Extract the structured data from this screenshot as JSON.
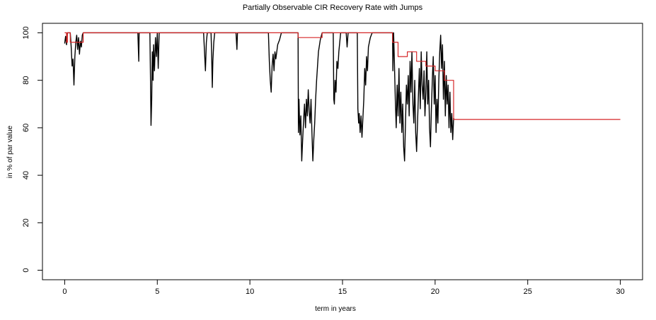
{
  "chart_data": {
    "type": "line",
    "title": "Partially Observable CIR Recovery Rate with Jumps",
    "xlabel": "term in years",
    "ylabel": "in % of par value",
    "xlim": [
      -1.2,
      31.2
    ],
    "ylim": [
      -4,
      104
    ],
    "x_ticks": [
      0,
      5,
      10,
      15,
      20,
      25,
      30
    ],
    "y_ticks": [
      0,
      20,
      40,
      60,
      80,
      100
    ],
    "grid": false,
    "legend": "none",
    "series": [
      {
        "color": "#000000",
        "points": [
          [
            0.0,
            95.5
          ],
          [
            0.05,
            98.5
          ],
          [
            0.1,
            95.0
          ],
          [
            0.15,
            100.0
          ],
          [
            0.3,
            100.0
          ],
          [
            0.35,
            94.0
          ],
          [
            0.4,
            86.0
          ],
          [
            0.45,
            89.0
          ],
          [
            0.5,
            78.0
          ],
          [
            0.55,
            90.0
          ],
          [
            0.6,
            96.0
          ],
          [
            0.65,
            99.0
          ],
          [
            0.7,
            93.0
          ],
          [
            0.75,
            98.0
          ],
          [
            0.8,
            91.0
          ],
          [
            0.85,
            96.5
          ],
          [
            0.9,
            94.0
          ],
          [
            0.95,
            99.0
          ],
          [
            1.0,
            100.0
          ],
          [
            3.95,
            100.0
          ],
          [
            4.0,
            88.0
          ],
          [
            4.02,
            100.0
          ],
          [
            4.6,
            100.0
          ],
          [
            4.63,
            82.0
          ],
          [
            4.66,
            61.0
          ],
          [
            4.7,
            72.0
          ],
          [
            4.73,
            92.0
          ],
          [
            4.77,
            80.0
          ],
          [
            4.8,
            95.0
          ],
          [
            4.85,
            84.0
          ],
          [
            4.9,
            98.0
          ],
          [
            4.95,
            90.0
          ],
          [
            5.0,
            100.0
          ],
          [
            5.05,
            85.0
          ],
          [
            5.1,
            100.0
          ],
          [
            7.5,
            100.0
          ],
          [
            7.55,
            92.0
          ],
          [
            7.6,
            84.0
          ],
          [
            7.65,
            96.0
          ],
          [
            7.7,
            100.0
          ],
          [
            7.9,
            100.0
          ],
          [
            7.93,
            92.0
          ],
          [
            7.97,
            77.0
          ],
          [
            8.0,
            88.0
          ],
          [
            8.05,
            96.0
          ],
          [
            8.1,
            100.0
          ],
          [
            9.25,
            100.0
          ],
          [
            9.3,
            93.0
          ],
          [
            9.33,
            100.0
          ],
          [
            11.0,
            100.0
          ],
          [
            11.05,
            88.0
          ],
          [
            11.1,
            80.0
          ],
          [
            11.15,
            75.0
          ],
          [
            11.2,
            86.0
          ],
          [
            11.25,
            91.0
          ],
          [
            11.3,
            84.0
          ],
          [
            11.35,
            92.0
          ],
          [
            11.4,
            89.0
          ],
          [
            11.5,
            95.0
          ],
          [
            11.6,
            97.0
          ],
          [
            11.7,
            100.0
          ],
          [
            12.6,
            100.0
          ],
          [
            12.62,
            58.0
          ],
          [
            12.65,
            72.0
          ],
          [
            12.7,
            57.0
          ],
          [
            12.75,
            65.0
          ],
          [
            12.8,
            46.0
          ],
          [
            12.85,
            55.0
          ],
          [
            12.9,
            63.0
          ],
          [
            12.95,
            70.0
          ],
          [
            13.0,
            60.0
          ],
          [
            13.05,
            72.0
          ],
          [
            13.1,
            65.0
          ],
          [
            13.15,
            76.0
          ],
          [
            13.2,
            67.0
          ],
          [
            13.25,
            62.0
          ],
          [
            13.3,
            72.0
          ],
          [
            13.35,
            58.0
          ],
          [
            13.4,
            46.0
          ],
          [
            13.45,
            55.0
          ],
          [
            13.5,
            62.0
          ],
          [
            13.55,
            72.0
          ],
          [
            13.6,
            80.0
          ],
          [
            13.65,
            86.0
          ],
          [
            13.7,
            92.0
          ],
          [
            13.8,
            97.0
          ],
          [
            13.9,
            100.0
          ],
          [
            14.5,
            100.0
          ],
          [
            14.53,
            72.0
          ],
          [
            14.56,
            70.0
          ],
          [
            14.6,
            80.0
          ],
          [
            14.65,
            75.0
          ],
          [
            14.7,
            88.0
          ],
          [
            14.75,
            85.0
          ],
          [
            14.8,
            92.0
          ],
          [
            14.85,
            96.0
          ],
          [
            14.9,
            100.0
          ],
          [
            15.2,
            100.0
          ],
          [
            15.25,
            94.0
          ],
          [
            15.3,
            100.0
          ],
          [
            15.8,
            100.0
          ],
          [
            15.83,
            68.0
          ],
          [
            15.87,
            62.0
          ],
          [
            15.9,
            66.0
          ],
          [
            15.95,
            58.0
          ],
          [
            16.0,
            65.0
          ],
          [
            16.05,
            56.0
          ],
          [
            16.1,
            64.0
          ],
          [
            16.15,
            72.0
          ],
          [
            16.2,
            85.0
          ],
          [
            16.25,
            78.0
          ],
          [
            16.3,
            90.0
          ],
          [
            16.35,
            84.0
          ],
          [
            16.4,
            94.0
          ],
          [
            16.5,
            98.0
          ],
          [
            16.6,
            100.0
          ],
          [
            17.7,
            100.0
          ],
          [
            17.72,
            84.0
          ],
          [
            17.76,
            100.0
          ],
          [
            17.8,
            88.0
          ],
          [
            17.85,
            72.0
          ],
          [
            17.9,
            60.0
          ],
          [
            17.95,
            78.0
          ],
          [
            18.0,
            65.0
          ],
          [
            18.05,
            85.0
          ],
          [
            18.1,
            62.0
          ],
          [
            18.15,
            75.0
          ],
          [
            18.2,
            58.0
          ],
          [
            18.25,
            70.0
          ],
          [
            18.3,
            52.0
          ],
          [
            18.35,
            46.0
          ],
          [
            18.4,
            62.0
          ],
          [
            18.45,
            78.0
          ],
          [
            18.5,
            70.0
          ],
          [
            18.55,
            82.0
          ],
          [
            18.6,
            65.0
          ],
          [
            18.65,
            88.0
          ],
          [
            18.7,
            75.0
          ],
          [
            18.75,
            92.0
          ],
          [
            18.8,
            70.0
          ],
          [
            18.85,
            62.0
          ],
          [
            18.9,
            80.0
          ],
          [
            18.95,
            58.0
          ],
          [
            19.0,
            50.0
          ],
          [
            19.05,
            62.0
          ],
          [
            19.1,
            74.0
          ],
          [
            19.15,
            85.0
          ],
          [
            19.2,
            68.0
          ],
          [
            19.25,
            92.0
          ],
          [
            19.3,
            78.0
          ],
          [
            19.35,
            72.0
          ],
          [
            19.4,
            84.0
          ],
          [
            19.45,
            65.0
          ],
          [
            19.5,
            75.0
          ],
          [
            19.55,
            92.0
          ],
          [
            19.6,
            70.0
          ],
          [
            19.65,
            80.0
          ],
          [
            19.7,
            60.0
          ],
          [
            19.75,
            52.0
          ],
          [
            19.8,
            68.0
          ],
          [
            19.85,
            80.0
          ],
          [
            19.9,
            90.0
          ],
          [
            19.95,
            70.0
          ],
          [
            20.0,
            82.0
          ],
          [
            20.05,
            58.0
          ],
          [
            20.1,
            72.0
          ],
          [
            20.15,
            62.0
          ],
          [
            20.2,
            80.0
          ],
          [
            20.25,
            92.0
          ],
          [
            20.3,
            99.0
          ],
          [
            20.35,
            85.0
          ],
          [
            20.4,
            95.0
          ],
          [
            20.45,
            72.0
          ],
          [
            20.5,
            88.0
          ],
          [
            20.55,
            65.0
          ],
          [
            20.6,
            82.0
          ],
          [
            20.65,
            70.0
          ],
          [
            20.7,
            78.0
          ],
          [
            20.75,
            60.0
          ],
          [
            20.8,
            75.0
          ],
          [
            20.85,
            58.0
          ],
          [
            20.9,
            66.0
          ],
          [
            20.95,
            55.0
          ],
          [
            21.0,
            64.0
          ],
          [
            21.02,
            63.5
          ]
        ]
      },
      {
        "color": "#d62728",
        "points": [
          [
            0.0,
            100.0
          ],
          [
            0.1,
            100.0
          ],
          [
            0.1,
            96.0
          ],
          [
            0.15,
            96.0
          ],
          [
            0.15,
            100.0
          ],
          [
            0.3,
            100.0
          ],
          [
            0.3,
            96.0
          ],
          [
            1.0,
            96.0
          ],
          [
            1.0,
            100.0
          ],
          [
            12.6,
            100.0
          ],
          [
            12.6,
            98.0
          ],
          [
            13.9,
            98.0
          ],
          [
            13.9,
            100.0
          ],
          [
            17.7,
            100.0
          ],
          [
            17.7,
            96.0
          ],
          [
            18.0,
            96.0
          ],
          [
            18.0,
            90.0
          ],
          [
            18.5,
            90.0
          ],
          [
            18.5,
            92.0
          ],
          [
            19.0,
            92.0
          ],
          [
            19.0,
            88.0
          ],
          [
            19.5,
            88.0
          ],
          [
            19.5,
            86.0
          ],
          [
            20.0,
            86.0
          ],
          [
            20.0,
            84.0
          ],
          [
            20.5,
            84.0
          ],
          [
            20.5,
            80.0
          ],
          [
            21.0,
            80.0
          ],
          [
            21.0,
            63.5
          ],
          [
            30.0,
            63.5
          ]
        ]
      }
    ]
  }
}
